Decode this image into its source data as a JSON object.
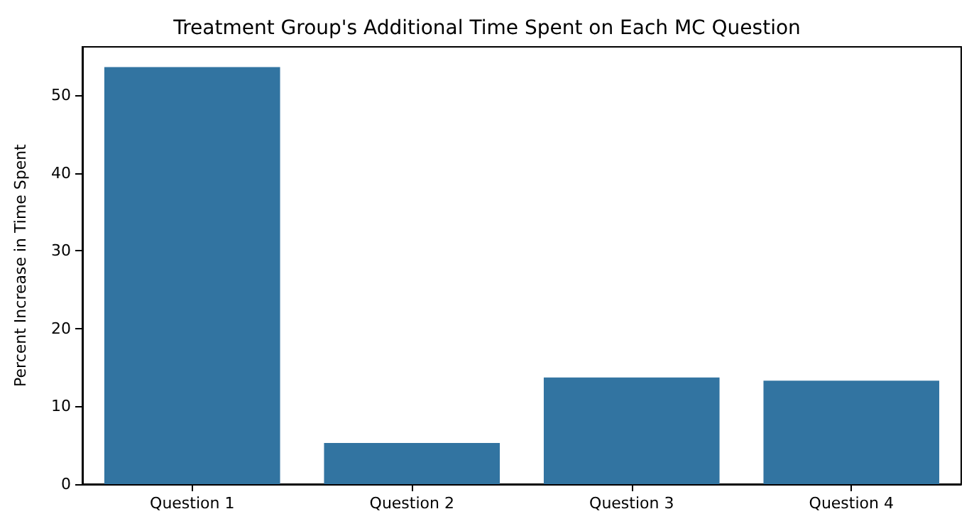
{
  "chart_data": {
    "type": "bar",
    "title": "Treatment Group's Additional Time Spent on Each MC Question",
    "ylabel": "Percent Increase in Time Spent",
    "categories": [
      "Question 1",
      "Question 2",
      "Question 3",
      "Question 4"
    ],
    "values": [
      53.6,
      5.3,
      13.7,
      13.3
    ],
    "color": "#3274a1",
    "ylim": [
      0,
      56.2
    ],
    "yticks": [
      0,
      10,
      20,
      30,
      40,
      50
    ],
    "grid": false
  }
}
